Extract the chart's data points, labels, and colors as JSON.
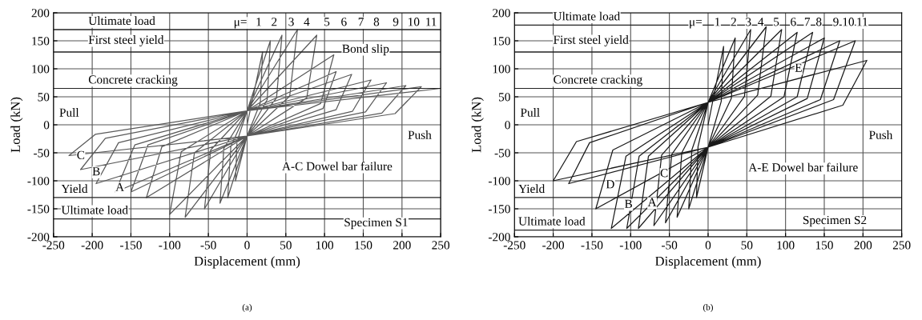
{
  "chart_data": [
    {
      "type": "line",
      "xlabel": "Displacement (mm)",
      "ylabel": "Load (kN)",
      "xlim": [
        -250,
        250
      ],
      "ylim": [
        -200,
        200
      ],
      "xticks": [
        -250,
        -200,
        -150,
        -100,
        -50,
        0,
        50,
        100,
        150,
        200,
        250
      ],
      "yticks": [
        -200,
        -150,
        -100,
        -50,
        0,
        50,
        100,
        150,
        200
      ],
      "grid": true,
      "marker": "none",
      "line_style": "solid",
      "series": [
        {
          "color": "#5a5a5a",
          "x": [
            0,
            20,
            17,
            0,
            -15,
            -13,
            0,
            30,
            26,
            0,
            -25,
            -21,
            0,
            45,
            38,
            0,
            -35,
            -30,
            0,
            65,
            55,
            0,
            -55,
            -47,
            0,
            90,
            77,
            0,
            -80,
            -68,
            0,
            112,
            95,
            0,
            -100,
            -85,
            0,
            115,
            98,
            0,
            -130,
            -110,
            0,
            135,
            115,
            0,
            -150,
            -128,
            0,
            160,
            136,
            0,
            -170,
            -145,
            0,
            180,
            153,
            0,
            -195,
            -166,
            0,
            205,
            174,
            0,
            -215,
            -183,
            0,
            225,
            191,
            0,
            -230,
            -196,
            0,
            250
          ],
          "values": [
            0,
            130,
            39,
            -20,
            -100,
            -30,
            25,
            150,
            45,
            -20,
            -130,
            -39,
            25,
            160,
            48,
            -20,
            -140,
            -42,
            25,
            170,
            51,
            -20,
            -150,
            -45,
            25,
            160,
            48,
            -20,
            -165,
            -50,
            25,
            125,
            38,
            -20,
            -160,
            -48,
            25,
            95,
            29,
            -20,
            -130,
            -39,
            25,
            90,
            27,
            -20,
            -120,
            -36,
            25,
            80,
            24,
            -20,
            -120,
            -36,
            25,
            75,
            23,
            -20,
            -105,
            -32,
            25,
            70,
            21,
            -20,
            -80,
            -24,
            25,
            68,
            20,
            -20,
            -55,
            -17,
            25,
            65
          ]
        }
      ],
      "ref_lines": [
        {
          "axis": "y",
          "value": 170,
          "label": "Ultimate load"
        },
        {
          "axis": "y",
          "value": 130
        },
        {
          "axis": "y",
          "value": 65,
          "label": "Concrete cracking"
        },
        {
          "axis": "y",
          "value": -130,
          "label": "Yield"
        },
        {
          "axis": "y",
          "value": -168,
          "label": "Ultimate load"
        }
      ],
      "annotations": [
        "μ=",
        "1",
        "2",
        "3",
        "4",
        "5",
        "6",
        "7",
        "8",
        "9",
        "10",
        "11",
        "First steel yield",
        "Bond slip",
        "Pull",
        "Push",
        "A-C Dowel bar failure",
        "Specimen S1",
        "A",
        "B",
        "C",
        "(a)"
      ]
    },
    {
      "type": "line",
      "xlabel": "Displacement (mm)",
      "ylabel": "Load (kN)",
      "xlim": [
        -250,
        250
      ],
      "ylim": [
        -200,
        200
      ],
      "xticks": [
        -250,
        -200,
        -150,
        -100,
        -50,
        0,
        50,
        100,
        150,
        200,
        250
      ],
      "yticks": [
        -200,
        -150,
        -100,
        -50,
        0,
        50,
        100,
        150,
        200
      ],
      "grid": true,
      "marker": "none",
      "line_style": "solid",
      "series": [
        {
          "color": "#1a1a1a",
          "x": [
            0,
            20,
            17,
            0,
            -15,
            -13,
            0,
            35,
            30,
            0,
            -25,
            -21,
            0,
            55,
            47,
            0,
            -40,
            -34,
            0,
            75,
            64,
            0,
            -55,
            -47,
            0,
            95,
            81,
            0,
            -70,
            -60,
            0,
            115,
            98,
            0,
            -90,
            -77,
            0,
            135,
            115,
            0,
            -105,
            -89,
            0,
            150,
            128,
            0,
            -125,
            -106,
            0,
            170,
            145,
            0,
            -145,
            -123,
            0,
            190,
            162,
            0,
            -180,
            -153,
            0,
            205,
            174,
            0,
            -200,
            -170,
            0
          ],
          "values": [
            0,
            140,
            42,
            -40,
            -130,
            -39,
            40,
            155,
            47,
            -40,
            -150,
            -45,
            40,
            170,
            51,
            -40,
            -165,
            -50,
            40,
            175,
            53,
            -40,
            -175,
            -53,
            40,
            170,
            51,
            -40,
            -180,
            -54,
            40,
            165,
            50,
            -40,
            -185,
            -56,
            40,
            165,
            50,
            -40,
            -185,
            -56,
            40,
            155,
            47,
            -40,
            -185,
            -56,
            40,
            150,
            45,
            -40,
            -150,
            -45,
            40,
            150,
            45,
            -40,
            -105,
            -32,
            40,
            115,
            35,
            -40,
            -100,
            -30,
            40
          ]
        }
      ],
      "ref_lines": [
        {
          "axis": "y",
          "value": 178,
          "label": "Ultimate load"
        },
        {
          "axis": "y",
          "value": 130
        },
        {
          "axis": "y",
          "value": 65,
          "label": "Concrete cracking"
        },
        {
          "axis": "y",
          "value": -130,
          "label": "Yield"
        },
        {
          "axis": "y",
          "value": -188,
          "label": "Ultimate load"
        }
      ],
      "annotations": [
        "μ=",
        "1",
        "2",
        "3",
        "4",
        "5",
        "6",
        "7",
        "8",
        "9",
        "10",
        "11",
        "First steel yield",
        "Pull",
        "Push",
        "A-E Dowel bar failure",
        "Specimen S2",
        "A",
        "B",
        "C",
        "D",
        "E",
        "(b)"
      ]
    }
  ]
}
